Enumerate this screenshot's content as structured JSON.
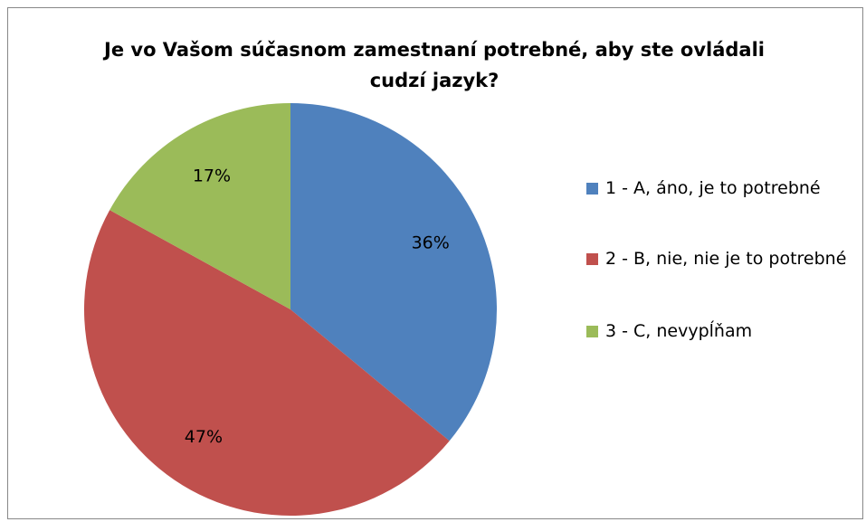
{
  "chart_data": {
    "type": "pie",
    "title": "Je vo Vašom súčasnom zamestnaní potrebné, aby ste ovládali cudzí jazyk?",
    "categories": [
      "1 - A, áno, je to potrebné",
      "2 - B, nie, nie je to potrebné",
      "3 - C, nevypĺňam"
    ],
    "values": [
      36,
      47,
      17
    ],
    "value_labels": [
      "36%",
      "47%",
      "17%"
    ],
    "colors": [
      "#4f81bd",
      "#c0504d",
      "#9bbb59"
    ],
    "legend": "right"
  }
}
